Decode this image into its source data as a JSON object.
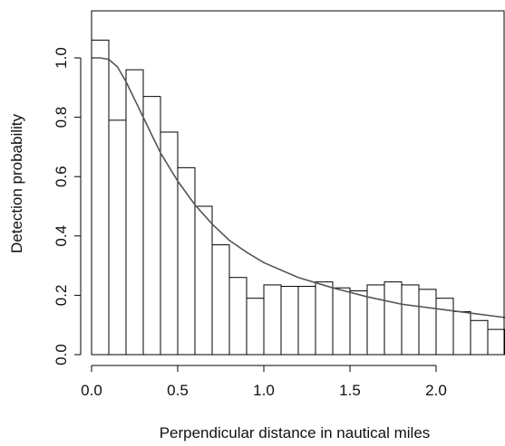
{
  "chart_data": {
    "type": "bar",
    "subtype": "histogram-with-fitted-curve",
    "xlabel": "Perpendicular distance in nautical miles",
    "ylabel": "Detection probability",
    "xlim": [
      0,
      2.4
    ],
    "ylim": [
      0,
      1.1
    ],
    "x_ticks": [
      0.0,
      0.5,
      1.0,
      1.5,
      2.0
    ],
    "x_tick_labels": [
      "0.0",
      "0.5",
      "1.0",
      "1.5",
      "2.0"
    ],
    "y_ticks": [
      0.0,
      0.2,
      0.4,
      0.6,
      0.8,
      1.0
    ],
    "y_tick_labels": [
      "0.0",
      "0.2",
      "0.4",
      "0.6",
      "0.8",
      "1.0"
    ],
    "bin_width": 0.1,
    "bins": [
      {
        "x0": 0.0,
        "x1": 0.1,
        "value": 1.06
      },
      {
        "x0": 0.1,
        "x1": 0.2,
        "value": 0.79
      },
      {
        "x0": 0.2,
        "x1": 0.3,
        "value": 0.96
      },
      {
        "x0": 0.3,
        "x1": 0.4,
        "value": 0.87
      },
      {
        "x0": 0.4,
        "x1": 0.5,
        "value": 0.75
      },
      {
        "x0": 0.5,
        "x1": 0.6,
        "value": 0.63
      },
      {
        "x0": 0.6,
        "x1": 0.7,
        "value": 0.5
      },
      {
        "x0": 0.7,
        "x1": 0.8,
        "value": 0.37
      },
      {
        "x0": 0.8,
        "x1": 0.9,
        "value": 0.26
      },
      {
        "x0": 0.9,
        "x1": 1.0,
        "value": 0.19
      },
      {
        "x0": 1.0,
        "x1": 1.1,
        "value": 0.235
      },
      {
        "x0": 1.1,
        "x1": 1.2,
        "value": 0.23
      },
      {
        "x0": 1.2,
        "x1": 1.3,
        "value": 0.23
      },
      {
        "x0": 1.3,
        "x1": 1.4,
        "value": 0.245
      },
      {
        "x0": 1.4,
        "x1": 1.5,
        "value": 0.225
      },
      {
        "x0": 1.5,
        "x1": 1.6,
        "value": 0.215
      },
      {
        "x0": 1.6,
        "x1": 1.7,
        "value": 0.235
      },
      {
        "x0": 1.7,
        "x1": 1.8,
        "value": 0.245
      },
      {
        "x0": 1.8,
        "x1": 1.9,
        "value": 0.235
      },
      {
        "x0": 1.9,
        "x1": 2.0,
        "value": 0.22
      },
      {
        "x0": 2.0,
        "x1": 2.1,
        "value": 0.19
      },
      {
        "x0": 2.1,
        "x1": 2.2,
        "value": 0.145
      },
      {
        "x0": 2.2,
        "x1": 2.3,
        "value": 0.115
      },
      {
        "x0": 2.3,
        "x1": 2.4,
        "value": 0.085
      }
    ],
    "fitted_curve": {
      "x": [
        0.0,
        0.05,
        0.1,
        0.15,
        0.2,
        0.25,
        0.3,
        0.4,
        0.5,
        0.6,
        0.7,
        0.8,
        0.9,
        1.0,
        1.2,
        1.4,
        1.6,
        1.8,
        2.0,
        2.2,
        2.4
      ],
      "y": [
        1.0,
        1.0,
        0.995,
        0.97,
        0.92,
        0.86,
        0.8,
        0.68,
        0.585,
        0.505,
        0.44,
        0.385,
        0.345,
        0.31,
        0.26,
        0.225,
        0.195,
        0.17,
        0.155,
        0.14,
        0.125
      ]
    },
    "colors": {
      "bar_fill": "#ffffff",
      "bar_stroke": "#000000",
      "curve": "#555555"
    },
    "grid": false
  }
}
